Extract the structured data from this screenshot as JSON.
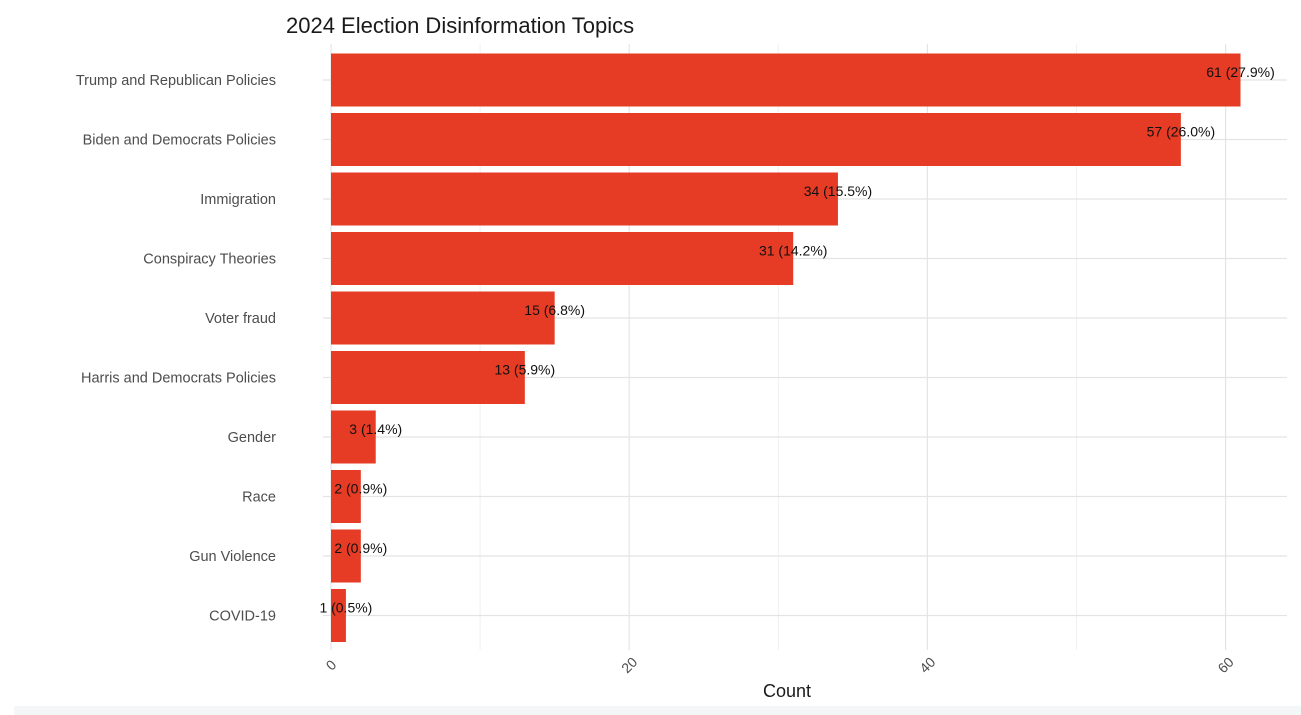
{
  "chart_data": {
    "type": "bar",
    "orientation": "horizontal",
    "title": "2024 Election Disinformation Topics",
    "xlabel": "Count",
    "ylabel": "",
    "xlim": [
      0,
      63
    ],
    "x_ticks": [
      0,
      20,
      40,
      60
    ],
    "x_tick_labels": [
      "0",
      "20",
      "40",
      "60"
    ],
    "grid": true,
    "legend": "none",
    "bar_color": "#e63b24",
    "categories": [
      "Trump and Republican Policies",
      "Biden and Democrats Policies",
      "Immigration",
      "Conspiracy Theories",
      "Voter fraud",
      "Harris and Democrats Policies",
      "Gender",
      "Race",
      "Gun Violence",
      "COVID-19"
    ],
    "values": [
      61,
      57,
      34,
      31,
      15,
      13,
      3,
      2,
      2,
      1
    ],
    "data_labels": [
      "61 (27.9%)",
      "57 (26.0%)",
      "34 (15.5%)",
      "31 (14.2%)",
      "15 (6.8%)",
      "13 (5.9%)",
      "3 (1.4%)",
      "2 (0.9%)",
      "2 (0.9%)",
      "1 (0.5%)"
    ]
  }
}
